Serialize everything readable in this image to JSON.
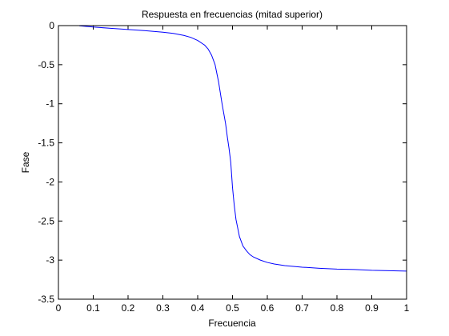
{
  "chart_data": {
    "type": "line",
    "title": "Respuesta en frecuencias (mitad superior)",
    "xlabel": "Frecuencia",
    "ylabel": "Fase",
    "xlim": [
      0,
      1
    ],
    "ylim": [
      -3.5,
      0
    ],
    "xticks": [
      "0",
      "0.1",
      "0.2",
      "0.3",
      "0.4",
      "0.5",
      "0.6",
      "0.7",
      "0.8",
      "0.9",
      "1"
    ],
    "yticks": [
      "0",
      "-0.5",
      "-1",
      "-1.5",
      "-2",
      "-2.5",
      "-3",
      "-3.5"
    ],
    "grid": false,
    "line_color": "#0000ff",
    "series": [
      {
        "x": [
          0.06,
          0.08,
          0.1,
          0.15,
          0.2,
          0.25,
          0.3,
          0.33,
          0.36,
          0.38,
          0.4,
          0.42,
          0.43,
          0.44,
          0.45,
          0.46,
          0.47,
          0.48,
          0.485,
          0.49,
          0.495,
          0.5,
          0.505,
          0.51,
          0.52,
          0.53,
          0.54,
          0.55,
          0.56,
          0.58,
          0.6,
          0.62,
          0.65,
          0.7,
          0.75,
          0.8,
          0.85,
          0.9,
          0.95,
          1.0
        ],
        "y": [
          -0.003,
          -0.01,
          -0.018,
          -0.035,
          -0.05,
          -0.065,
          -0.085,
          -0.1,
          -0.125,
          -0.15,
          -0.19,
          -0.25,
          -0.3,
          -0.38,
          -0.5,
          -0.72,
          -1.0,
          -1.25,
          -1.42,
          -1.57,
          -1.75,
          -2.07,
          -2.3,
          -2.48,
          -2.7,
          -2.82,
          -2.88,
          -2.93,
          -2.96,
          -3.0,
          -3.03,
          -3.05,
          -3.07,
          -3.09,
          -3.105,
          -3.115,
          -3.12,
          -3.13,
          -3.135,
          -3.14
        ]
      }
    ]
  }
}
